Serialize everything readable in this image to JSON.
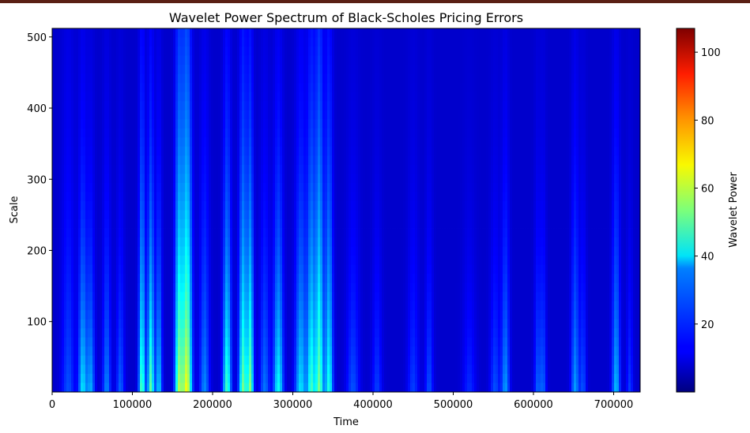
{
  "chart_data": {
    "type": "heatmap",
    "title": "Wavelet Power Spectrum of Black-Scholes Pricing Errors",
    "xlabel": "Time",
    "ylabel": "Scale",
    "xlim": [
      0,
      733000
    ],
    "ylim": [
      1,
      512
    ],
    "x_ticks": [
      {
        "value": 0,
        "label": "0"
      },
      {
        "value": 100000,
        "label": "100000"
      },
      {
        "value": 200000,
        "label": "200000"
      },
      {
        "value": 300000,
        "label": "300000"
      },
      {
        "value": 400000,
        "label": "400000"
      },
      {
        "value": 500000,
        "label": "500000"
      },
      {
        "value": 600000,
        "label": "600000"
      },
      {
        "value": 700000,
        "label": "700000"
      }
    ],
    "y_ticks": [
      {
        "value": 100,
        "label": "100"
      },
      {
        "value": 200,
        "label": "200"
      },
      {
        "value": 300,
        "label": "300"
      },
      {
        "value": 400,
        "label": "400"
      },
      {
        "value": 500,
        "label": "500"
      }
    ],
    "colormap": "jet",
    "colorbar": {
      "label": "Wavelet Power",
      "range": [
        0,
        107
      ],
      "ticks": [
        {
          "value": 20,
          "label": "20"
        },
        {
          "value": 40,
          "label": "40"
        },
        {
          "value": 60,
          "label": "60"
        },
        {
          "value": 80,
          "label": "80"
        },
        {
          "value": 100,
          "label": "100"
        }
      ]
    },
    "background_power": 8,
    "bands": [
      {
        "center": 20000,
        "width": 8000,
        "peak_power": 14,
        "decay_scale": 300
      },
      {
        "center": 38000,
        "width": 5000,
        "peak_power": 30,
        "decay_scale": 230
      },
      {
        "center": 48000,
        "width": 5000,
        "peak_power": 24,
        "decay_scale": 200
      },
      {
        "center": 68000,
        "width": 5000,
        "peak_power": 20,
        "decay_scale": 220
      },
      {
        "center": 85000,
        "width": 5000,
        "peak_power": 16,
        "decay_scale": 200
      },
      {
        "center": 112000,
        "width": 4000,
        "peak_power": 42,
        "decay_scale": 260
      },
      {
        "center": 123000,
        "width": 4000,
        "peak_power": 44,
        "decay_scale": 240
      },
      {
        "center": 133000,
        "width": 4000,
        "peak_power": 28,
        "decay_scale": 220
      },
      {
        "center": 158000,
        "width": 5000,
        "peak_power": 48,
        "decay_scale": 330
      },
      {
        "center": 168000,
        "width": 6000,
        "peak_power": 58,
        "decay_scale": 340
      },
      {
        "center": 190000,
        "width": 6000,
        "peak_power": 20,
        "decay_scale": 280
      },
      {
        "center": 218000,
        "width": 5000,
        "peak_power": 40,
        "decay_scale": 260
      },
      {
        "center": 238000,
        "width": 5000,
        "peak_power": 45,
        "decay_scale": 280
      },
      {
        "center": 247000,
        "width": 4000,
        "peak_power": 46,
        "decay_scale": 260
      },
      {
        "center": 265000,
        "width": 6000,
        "peak_power": 18,
        "decay_scale": 250
      },
      {
        "center": 282000,
        "width": 6000,
        "peak_power": 34,
        "decay_scale": 240
      },
      {
        "center": 310000,
        "width": 7000,
        "peak_power": 30,
        "decay_scale": 260
      },
      {
        "center": 323000,
        "width": 5000,
        "peak_power": 38,
        "decay_scale": 300
      },
      {
        "center": 333000,
        "width": 5000,
        "peak_power": 45,
        "decay_scale": 340
      },
      {
        "center": 345000,
        "width": 5000,
        "peak_power": 36,
        "decay_scale": 300
      },
      {
        "center": 375000,
        "width": 8000,
        "peak_power": 14,
        "decay_scale": 220
      },
      {
        "center": 405000,
        "width": 6000,
        "peak_power": 12,
        "decay_scale": 200
      },
      {
        "center": 450000,
        "width": 7000,
        "peak_power": 12,
        "decay_scale": 220
      },
      {
        "center": 470000,
        "width": 5000,
        "peak_power": 14,
        "decay_scale": 200
      },
      {
        "center": 520000,
        "width": 8000,
        "peak_power": 10,
        "decay_scale": 180
      },
      {
        "center": 552000,
        "width": 6000,
        "peak_power": 14,
        "decay_scale": 200
      },
      {
        "center": 565000,
        "width": 5000,
        "peak_power": 22,
        "decay_scale": 230
      },
      {
        "center": 605000,
        "width": 4000,
        "peak_power": 15,
        "decay_scale": 200
      },
      {
        "center": 612000,
        "width": 4000,
        "peak_power": 16,
        "decay_scale": 200
      },
      {
        "center": 652000,
        "width": 5000,
        "peak_power": 22,
        "decay_scale": 250
      },
      {
        "center": 662000,
        "width": 4000,
        "peak_power": 14,
        "decay_scale": 200
      },
      {
        "center": 703000,
        "width": 5000,
        "peak_power": 26,
        "decay_scale": 250
      },
      {
        "center": 720000,
        "width": 4000,
        "peak_power": 12,
        "decay_scale": 180
      }
    ]
  }
}
